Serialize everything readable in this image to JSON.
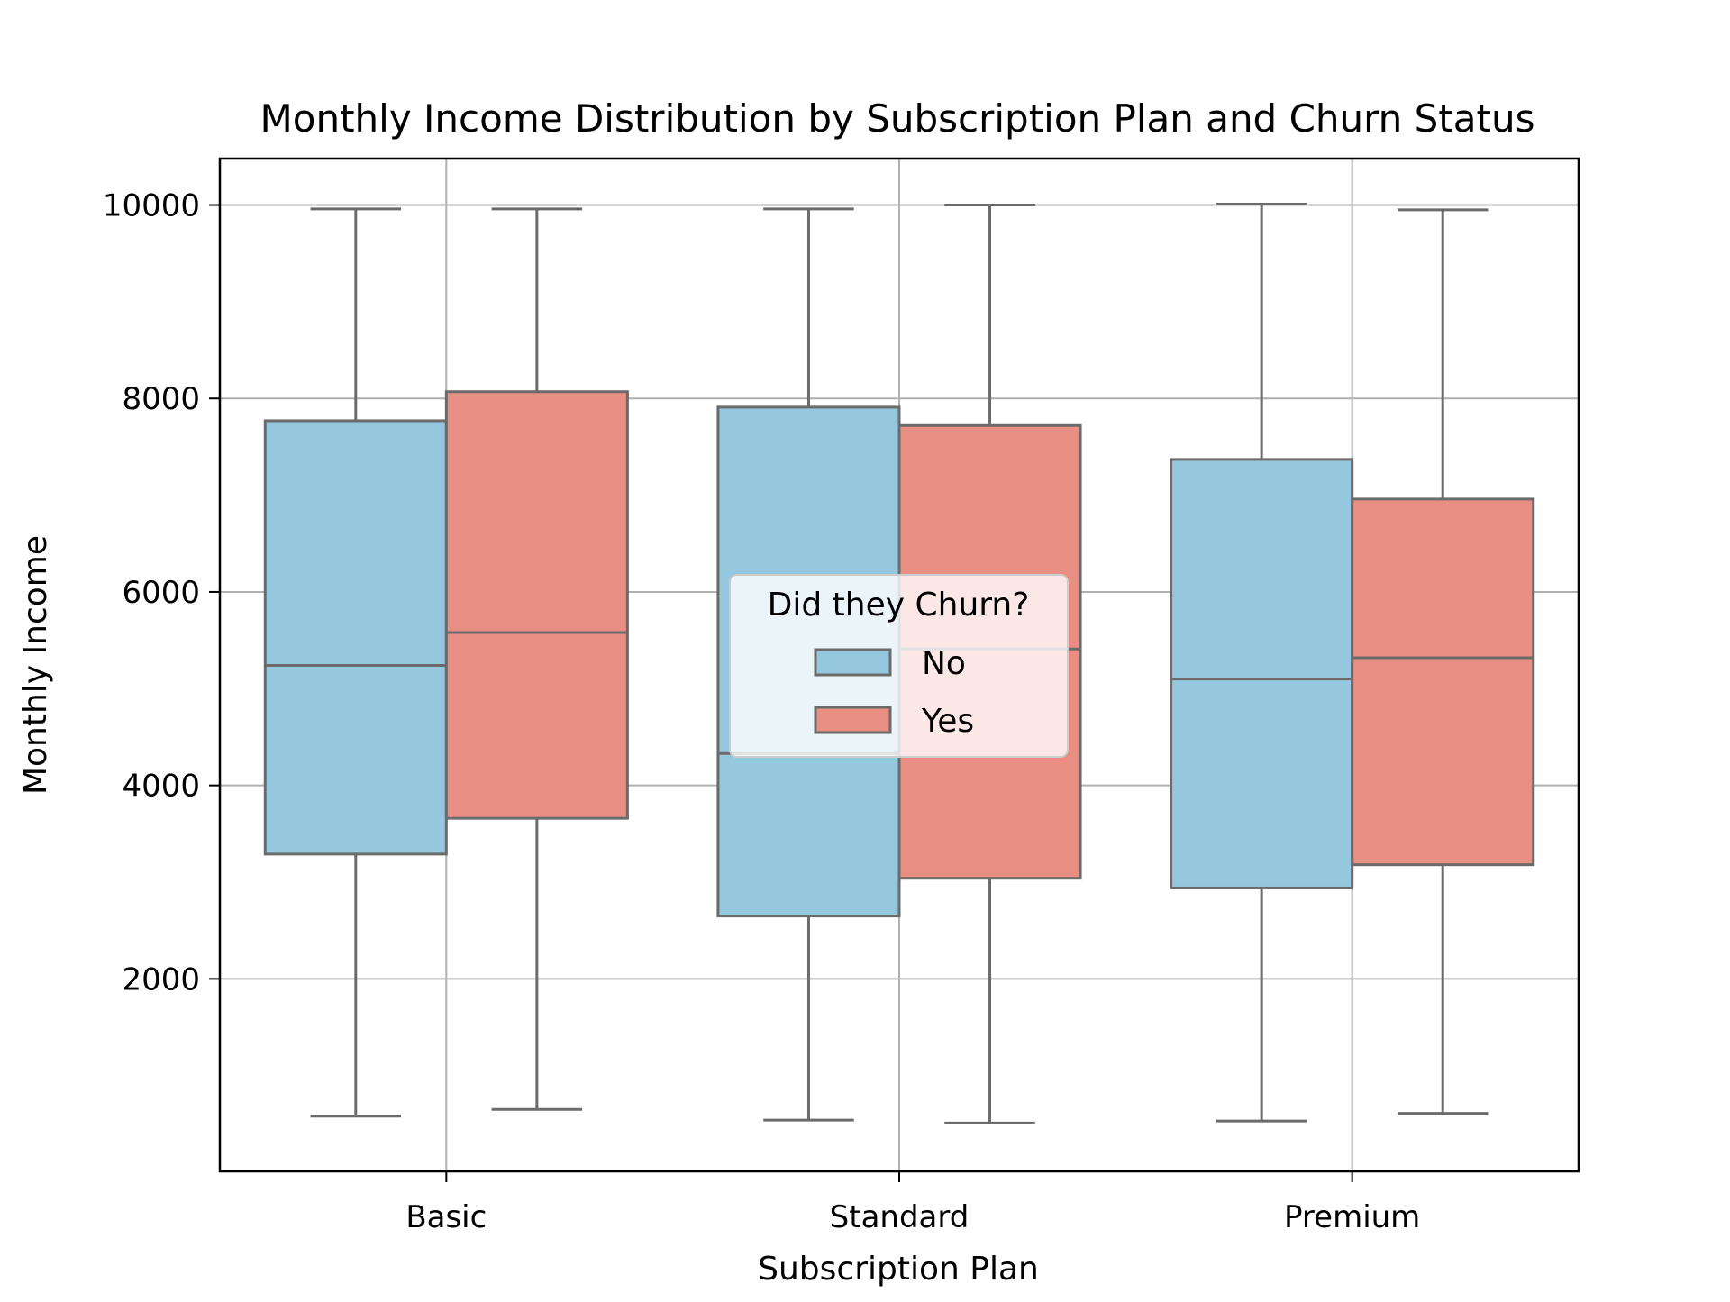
{
  "chart_data": {
    "type": "box",
    "title": "Monthly Income Distribution by Subscription Plan and Churn Status",
    "xlabel": "Subscription Plan",
    "ylabel": "Monthly Income",
    "categories": [
      "Basic",
      "Standard",
      "Premium"
    ],
    "yticks": [
      "2000",
      "4000",
      "6000",
      "8000",
      "10000"
    ],
    "ylim": [
      10,
      10480
    ],
    "grid": true,
    "legend": {
      "title": "Did they Churn?",
      "placement": "center",
      "entries": [
        "No",
        "Yes"
      ]
    },
    "series": [
      {
        "name": "No",
        "color": "#95c8de",
        "boxes": [
          {
            "whisker_low": 580,
            "q1": 3290,
            "median": 5240,
            "q3": 7770,
            "whisker_high": 9960
          },
          {
            "whisker_low": 540,
            "q1": 2650,
            "median": 4330,
            "q3": 7910,
            "whisker_high": 9960
          },
          {
            "whisker_low": 530,
            "q1": 2940,
            "median": 5100,
            "q3": 7370,
            "whisker_high": 10010
          }
        ]
      },
      {
        "name": "Yes",
        "color": "#e88e82",
        "boxes": [
          {
            "whisker_low": 650,
            "q1": 3660,
            "median": 5580,
            "q3": 8070,
            "whisker_high": 9960
          },
          {
            "whisker_low": 510,
            "q1": 3040,
            "median": 5410,
            "q3": 7720,
            "whisker_high": 10000
          },
          {
            "whisker_low": 610,
            "q1": 3180,
            "median": 5320,
            "q3": 6960,
            "whisker_high": 9950
          }
        ]
      }
    ],
    "line_color": "#6b6b6b",
    "grid_color": "#b0b0b0"
  }
}
